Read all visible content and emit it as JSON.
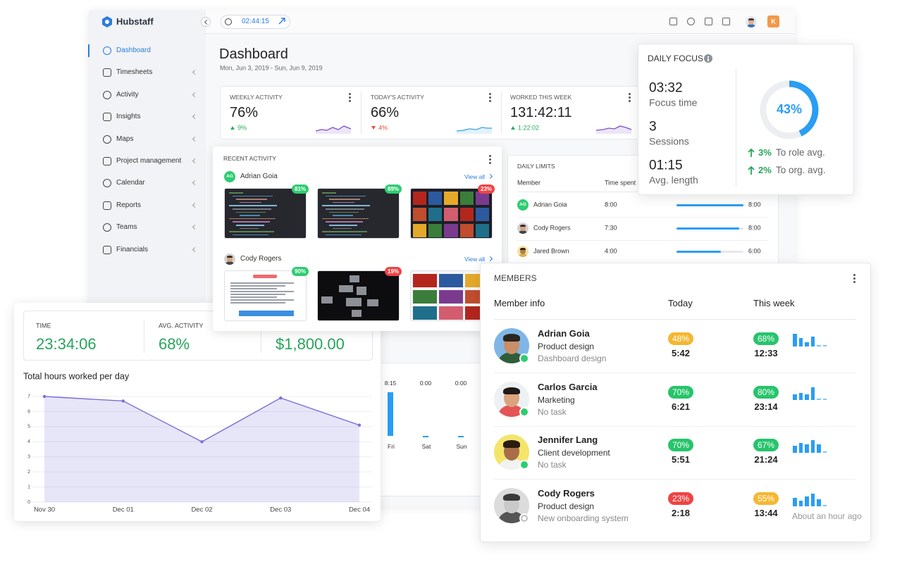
{
  "app": {
    "brand": "Hubstaff",
    "timer": "02:44:15",
    "avatar_initial": "K"
  },
  "sidebar": [
    "Dashboard",
    "Timesheets",
    "Activity",
    "Insights",
    "Maps",
    "Project management",
    "Calendar",
    "Reports",
    "Teams",
    "Financials"
  ],
  "dashboard": {
    "title": "Dashboard",
    "date_range": "Mon, Jun 3, 2019 - Sun, Jun 9, 2019",
    "stats": [
      {
        "label": "WEEKLY ACTIVITY",
        "value": "76%",
        "change": "9%",
        "trend": "up"
      },
      {
        "label": "TODAY'S ACTIVITY",
        "value": "66%",
        "change": "4%",
        "trend": "down"
      },
      {
        "label": "WORKED THIS WEEK",
        "value": "131:42:11",
        "change": "1:22:02",
        "trend": "up"
      }
    ]
  },
  "recent_activity": {
    "title": "RECENT ACTIVITY",
    "view_all": "View all",
    "members": [
      {
        "initials": "AG",
        "name": "Adrian Goia",
        "scores": [
          {
            "text": "81%",
            "color": "#2ecc71"
          },
          {
            "text": "89%",
            "color": "#2ecc71"
          },
          {
            "text": "23%",
            "color": "#ef4444"
          }
        ]
      },
      {
        "name": "Cody Rogers",
        "scores": [
          {
            "text": "90%",
            "color": "#2ecc71"
          },
          {
            "text": "19%",
            "color": "#ef4444"
          }
        ]
      }
    ]
  },
  "daily_limits": {
    "title": "DAILY LIMITS",
    "columns": [
      "Member",
      "Time spent"
    ],
    "rows": [
      {
        "initials": "AG",
        "name": "Adrian Goia",
        "spent": "8:00",
        "limit": "8:00"
      },
      {
        "name": "Cody Rogers",
        "spent": "7:30",
        "limit": "8:00"
      },
      {
        "name": "Jared Brown",
        "spent": "4:00",
        "limit": "6:00"
      }
    ]
  },
  "daily_focus": {
    "title": "DAILY FOCUS",
    "stats": [
      {
        "value": "03:32",
        "label": "Focus time"
      },
      {
        "value": "3",
        "label": "Sessions"
      },
      {
        "value": "01:15",
        "label": "Avg. length"
      }
    ],
    "percent": {
      "value": 43,
      "label": "43%"
    },
    "comparisons": [
      {
        "value": "3%",
        "label": "To role avg."
      },
      {
        "value": "2%",
        "label": "To org. avg."
      }
    ]
  },
  "summary": [
    {
      "label": "TIME",
      "value": "23:34:06"
    },
    {
      "label": "AVG. ACTIVITY",
      "value": "68%"
    },
    {
      "value": "$1,800.00"
    }
  ],
  "chart_data": {
    "type": "line",
    "title": "Total hours worked per day",
    "categories": [
      "Nov 30",
      "Dec 01",
      "Dec 02",
      "Dec 03",
      "Dec 04"
    ],
    "values": [
      7,
      6.7,
      4,
      6.9,
      5.1
    ],
    "color": "#7b6fd6",
    "ylim": [
      0,
      7
    ],
    "yticks": [
      0,
      1,
      2,
      3,
      4,
      5,
      6,
      7
    ],
    "grid": true
  },
  "weekly_bars": [
    {
      "value": "8:15",
      "day": "Fri"
    },
    {
      "value": "0:00",
      "day": "Sat"
    },
    {
      "value": "0:00",
      "day": "Sun"
    }
  ],
  "members": {
    "title": "MEMBERS",
    "columns": [
      "Member info",
      "Today",
      "This week"
    ],
    "rows": [
      {
        "name": "Adrian Goia",
        "role": "Product design",
        "task": "Dashboard design",
        "today": {
          "activity": "48%",
          "color": "#f5b731",
          "time": "5:42"
        },
        "week": {
          "activity": "68%",
          "color": "#27c46b",
          "time": "12:33"
        }
      },
      {
        "name": "Carlos Garcia",
        "role": "Marketing",
        "task": "No task",
        "today": {
          "activity": "70%",
          "color": "#27c46b",
          "time": "6:21"
        },
        "week": {
          "activity": "80%",
          "color": "#27c46b",
          "time": "23:14"
        }
      },
      {
        "name": "Jennifer Lang",
        "role": "Client development",
        "task": "No task",
        "today": {
          "activity": "70%",
          "color": "#27c46b",
          "time": "5:51"
        },
        "week": {
          "activity": "67%",
          "color": "#27c46b",
          "time": "21:24"
        }
      },
      {
        "name": "Cody Rogers",
        "role": "Product design",
        "task": "New onboarding system",
        "today": {
          "activity": "23%",
          "color": "#ef4444",
          "time": "2:18"
        },
        "week": {
          "activity": "55%",
          "color": "#f5b731",
          "time": "13:44"
        },
        "last_seen": "About an hour ago"
      }
    ]
  }
}
